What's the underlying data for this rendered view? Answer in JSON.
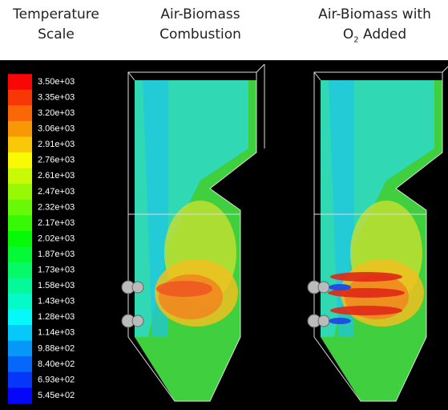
{
  "header": {
    "scale_title": [
      "Temperature",
      "Scale"
    ],
    "panel_1_title": [
      "Air-Biomass",
      "Combustion"
    ],
    "panel_2_title": {
      "line1": "Air-Biomass with",
      "line2_pre": "O",
      "line2_sub": "2",
      "line2_post": "Added"
    }
  },
  "scale": {
    "labels": [
      "3.50e+03",
      "3.35e+03",
      "3.20e+03",
      "3.06e+03",
      "2.91e+03",
      "2.76e+03",
      "2.61e+03",
      "2.47e+03",
      "2.32e+03",
      "2.17e+03",
      "2.02e+03",
      "1.87e+03",
      "1.73e+03",
      "1.58e+03",
      "1.43e+03",
      "1.28e+03",
      "1.14e+03",
      "9.88e+02",
      "8.40e+02",
      "6.93e+02",
      "5.45e+02"
    ]
  }
}
